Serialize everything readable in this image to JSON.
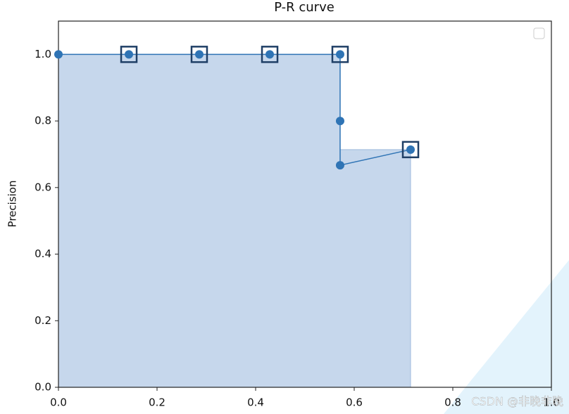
{
  "chart_data": {
    "type": "pr-curve",
    "title": "P-R curve",
    "y_label": "Precision",
    "xlim": [
      0,
      1.0
    ],
    "ylim": [
      0,
      1.1
    ],
    "xticks": [
      {
        "value": 0,
        "label": "0.0"
      },
      {
        "value": 0.2,
        "label": "0.2"
      },
      {
        "value": 0.4,
        "label": "0.4"
      },
      {
        "value": 0.6,
        "label": "0.6"
      },
      {
        "value": 0.8,
        "label": "0.8"
      },
      {
        "value": 1.0,
        "label": "1.0"
      }
    ],
    "yticks": [
      {
        "value": 0,
        "label": "0.0"
      },
      {
        "value": 0.2,
        "label": "0.2"
      },
      {
        "value": 0.4,
        "label": "0.4"
      },
      {
        "value": 0.6,
        "label": "0.6"
      },
      {
        "value": 0.8,
        "label": "0.8"
      },
      {
        "value": 1.0,
        "label": "1.0"
      }
    ],
    "area": {
      "color": "#c6d7ec",
      "x": [
        0,
        0.5714,
        0.5714,
        0.7143,
        0.7143
      ],
      "values": [
        1.0,
        1.0,
        0.714,
        0.714,
        0
      ]
    },
    "series": [
      {
        "color": "#2f74b5",
        "x": [
          0,
          0.1429,
          0.2857,
          0.4286,
          0.5714,
          0.5714,
          0.5714,
          0.7143
        ],
        "values": [
          1.0,
          1.0,
          1.0,
          1.0,
          1.0,
          0.8,
          0.667,
          0.714
        ]
      },
      {
        "color": "#1f3f66",
        "x": [
          0.1429,
          0.2857,
          0.4286,
          0.5714,
          0.7143
        ],
        "values": [
          1.0,
          1.0,
          1.0,
          1.0,
          0.714
        ]
      }
    ],
    "watermark": "CSDN @非晚非晚"
  }
}
